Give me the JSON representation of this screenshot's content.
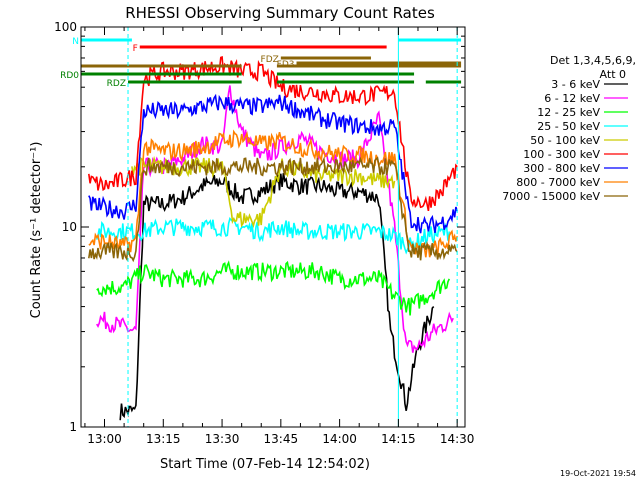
{
  "chart_data": {
    "type": "line",
    "title": "RHESSI Observing Summary Count Rates",
    "xlabel": "Start Time (07-Feb-14 12:54:02)",
    "ylabel": "Count Rate (s⁻¹ detector⁻¹)",
    "yscale": "log",
    "ylim": [
      1,
      100
    ],
    "xlim": [
      "12:54",
      "14:32"
    ],
    "x_ticks": [
      "13:00",
      "13:15",
      "13:30",
      "13:45",
      "14:00",
      "14:15",
      "14:30"
    ],
    "y_ticks": [
      "1",
      "10",
      "100"
    ],
    "legend_header": [
      "Det 1,3,4,5,6,9,",
      "Att 0"
    ],
    "legend_position": "right",
    "series": [
      {
        "name": "3 - 6 keV",
        "color": "#000000",
        "x": [
          "13:04",
          "13:08",
          "13:10",
          "13:15",
          "13:20",
          "13:25",
          "13:30",
          "13:35",
          "13:40",
          "13:45",
          "13:50",
          "13:55",
          "14:00",
          "14:05",
          "14:10",
          "14:13",
          "14:17",
          "14:20",
          "14:24"
        ],
        "values": [
          1.2,
          1.2,
          13,
          13,
          14,
          16,
          17,
          14,
          15,
          17,
          16,
          16,
          15,
          15,
          14,
          3,
          1.3,
          2.5,
          4
        ]
      },
      {
        "name": "6 - 12 keV",
        "color": "#ff00ff",
        "x": [
          "12:58",
          "13:04",
          "13:08",
          "13:10",
          "13:15",
          "13:20",
          "13:25",
          "13:30",
          "13:32",
          "13:35",
          "13:40",
          "13:45",
          "13:50",
          "13:55",
          "14:00",
          "14:05",
          "14:10",
          "14:14",
          "14:17",
          "14:20",
          "14:24",
          "14:29"
        ],
        "values": [
          3.5,
          3.2,
          3.0,
          20,
          20,
          22,
          26,
          25,
          50,
          30,
          22,
          25,
          28,
          24,
          22,
          22,
          35,
          10,
          2.5,
          2.5,
          3,
          3.5
        ]
      },
      {
        "name": "12 - 25 keV",
        "color": "#00ff00",
        "x": [
          "12:58",
          "13:05",
          "13:10",
          "13:15",
          "13:20",
          "13:25",
          "13:30",
          "13:35",
          "13:40",
          "13:45",
          "13:50",
          "13:55",
          "14:00",
          "14:05",
          "14:10",
          "14:14",
          "14:18",
          "14:22",
          "14:28"
        ],
        "values": [
          5.0,
          5.0,
          6.0,
          5.5,
          5.5,
          5.5,
          6.0,
          6.0,
          6.0,
          6.0,
          6.0,
          6.0,
          5.5,
          5.5,
          5.5,
          4.5,
          4.0,
          4.5,
          5.5
        ]
      },
      {
        "name": "25 - 50 keV",
        "color": "#00ffff",
        "x": [
          "12:58",
          "13:05",
          "13:10",
          "13:15",
          "13:20",
          "13:25",
          "13:30",
          "13:35",
          "13:40",
          "13:45",
          "13:50",
          "13:55",
          "14:00",
          "14:05",
          "14:10",
          "14:14",
          "14:18",
          "14:22",
          "14:28"
        ],
        "values": [
          9.5,
          9.5,
          9.5,
          10,
          10,
          10,
          10,
          10,
          9.5,
          10,
          9.5,
          9.5,
          9.5,
          9.5,
          9.5,
          9.0,
          8.0,
          9.0,
          9.5
        ]
      },
      {
        "name": "50 - 100 keV",
        "color": "#cccc00",
        "x": [
          "13:07",
          "13:10",
          "13:15",
          "13:20",
          "13:25",
          "13:30",
          "13:33",
          "13:40",
          "13:45",
          "13:50",
          "13:55",
          "14:00",
          "14:05",
          "14:10",
          "14:14"
        ],
        "values": [
          20,
          20,
          20,
          20,
          20,
          20,
          11,
          11,
          20,
          19,
          18,
          18,
          18,
          17,
          17
        ]
      },
      {
        "name": "100 - 300 keV",
        "color": "#ff0000",
        "x": [
          "12:56",
          "13:00",
          "13:04",
          "13:08",
          "13:10",
          "13:15",
          "13:20",
          "13:25",
          "13:30",
          "13:35",
          "13:40",
          "13:45",
          "13:50",
          "13:55",
          "14:00",
          "14:05",
          "14:10",
          "14:14",
          "14:18",
          "14:22",
          "14:26",
          "14:30"
        ],
        "values": [
          17,
          16,
          17,
          18,
          55,
          60,
          60,
          62,
          64,
          60,
          60,
          50,
          48,
          47,
          45,
          45,
          46,
          48,
          14,
          13,
          15,
          20
        ]
      },
      {
        "name": "300 - 800 keV",
        "color": "#0000ff",
        "x": [
          "12:56",
          "13:00",
          "13:05",
          "13:08",
          "13:10",
          "13:15",
          "13:20",
          "13:25",
          "13:30",
          "13:35",
          "13:40",
          "13:45",
          "13:50",
          "13:55",
          "14:00",
          "14:05",
          "14:10",
          "14:14",
          "14:18",
          "14:22",
          "14:26",
          "14:30"
        ],
        "values": [
          13,
          12.5,
          12,
          13,
          38,
          38,
          38,
          40,
          42,
          40,
          40,
          42,
          38,
          35,
          33,
          32,
          31,
          32,
          11,
          10,
          10.5,
          12
        ]
      },
      {
        "name": "800 - 7000 keV",
        "color": "#ff8000",
        "x": [
          "12:56",
          "13:00",
          "13:05",
          "13:08",
          "13:10",
          "13:15",
          "13:20",
          "13:25",
          "13:30",
          "13:35",
          "13:40",
          "13:45",
          "13:50",
          "13:55",
          "14:00",
          "14:05",
          "14:10",
          "14:14",
          "14:18",
          "14:22",
          "14:26",
          "14:30"
        ],
        "values": [
          8.5,
          8.5,
          8.0,
          8.5,
          25,
          24,
          24,
          25,
          27,
          28,
          26,
          27,
          25,
          24,
          23,
          23,
          22,
          22,
          8.0,
          7.5,
          8.0,
          9.0
        ]
      },
      {
        "name": "7000 - 15000 keV",
        "color": "#8b6508",
        "x": [
          "12:56",
          "13:08",
          "13:10",
          "13:15",
          "13:20",
          "13:25",
          "13:30",
          "13:35",
          "13:40",
          "13:45",
          "13:50",
          "13:55",
          "14:00",
          "14:05",
          "14:10",
          "14:14",
          "14:18",
          "14:30"
        ],
        "values": [
          7.5,
          7.5,
          20,
          20,
          20,
          20,
          20,
          20,
          20,
          20,
          20,
          20,
          20,
          20,
          20,
          20,
          7.5,
          7.5
        ]
      }
    ],
    "flag_bars": [
      {
        "label": "N",
        "color": "#00ffff",
        "segments": [
          [
            "12:54",
            "13:07"
          ],
          [
            "14:15",
            "14:31"
          ]
        ]
      },
      {
        "label": "F",
        "color": "#ff0000",
        "segments": [
          [
            "13:09",
            "14:12"
          ]
        ]
      },
      {
        "label": "FDZ",
        "color": "#8b6508",
        "segments": [
          [
            "13:45",
            "14:08"
          ]
        ]
      },
      {
        "label": "FD3",
        "color": "#8b6508",
        "segments": [
          [
            "13:49",
            "14:31"
          ]
        ]
      },
      {
        "label": "",
        "color": "#8b6508",
        "segments": [
          [
            "12:54",
            "13:35"
          ],
          [
            "13:44",
            "14:31"
          ]
        ]
      },
      {
        "label": "RD0",
        "color": "#008000",
        "segments": [
          [
            "12:54",
            "13:35"
          ],
          [
            "13:44",
            "14:19"
          ]
        ]
      },
      {
        "label": "RDZ",
        "color": "#008000",
        "segments": [
          [
            "13:06",
            "13:35"
          ],
          [
            "13:44",
            "14:19"
          ],
          [
            "14:22",
            "14:31"
          ]
        ]
      }
    ],
    "vertical_markers": [
      {
        "x": "13:06",
        "color": "#00ffff",
        "style": "dashed"
      },
      {
        "x": "14:15",
        "color": "#00ffff",
        "style": "solid"
      },
      {
        "x": "14:30",
        "color": "#00ffff",
        "style": "dashed"
      }
    ],
    "footer_date": "19-Oct-2021 19:54",
    "grid": false
  }
}
